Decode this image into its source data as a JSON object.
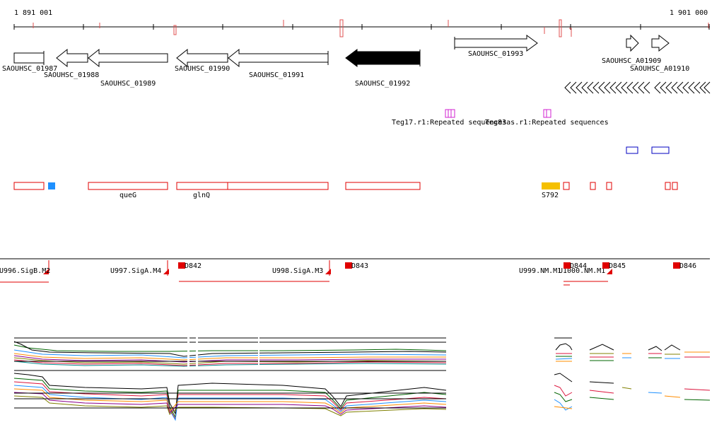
{
  "coords": {
    "start": "1 891 001",
    "end": "1 901 000"
  },
  "genes": [
    {
      "label": "SAOUHSC_01987"
    },
    {
      "label": "SAOUHSC_01988"
    },
    {
      "label": "SAOUHSC_01989"
    },
    {
      "label": "SAOUHSC_01990"
    },
    {
      "label": "SAOUHSC_01991"
    },
    {
      "label": "SAOUHSC_01992"
    },
    {
      "label": "SAOUHSC_01993"
    },
    {
      "label": "SAOUHSC_A01909"
    },
    {
      "label": "SAOUHSC_A01910"
    }
  ],
  "repeats": [
    {
      "label": "Teg17.r1:Repeated sequences"
    },
    {
      "label": "Teg83as.r1:Repeated sequences"
    }
  ],
  "features": [
    {
      "label": "queG"
    },
    {
      "label": "glnQ"
    },
    {
      "label": "S792"
    }
  ],
  "feature_colors": {
    "red": "#e00000",
    "blue": "#1e90ff",
    "orange": "#f5c000",
    "purple": "#d020d0",
    "navy": "#0000c0"
  },
  "segments": [
    {
      "label": "U996.SigB.M2"
    },
    {
      "label": "U997.SigA.M4"
    },
    {
      "label": "U998.SigA.M3"
    },
    {
      "label": "U999.NM.M1"
    },
    {
      "label": "U1000.NM.M1"
    },
    {
      "label": "D842"
    },
    {
      "label": "D843"
    },
    {
      "label": "D844"
    },
    {
      "label": "D845"
    },
    {
      "label": "D846"
    }
  ]
}
